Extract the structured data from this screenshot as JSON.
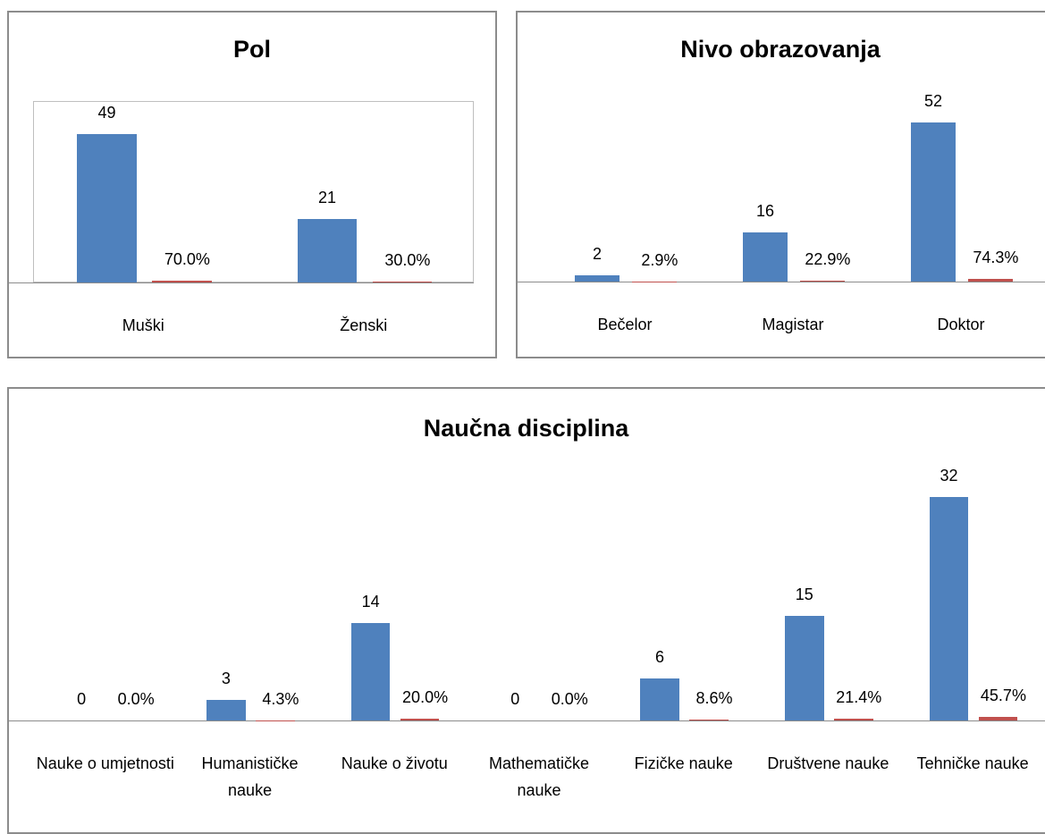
{
  "chart_data": [
    {
      "type": "bar",
      "title": "Pol",
      "categories": [
        "Muški",
        "Ženski"
      ],
      "series": [
        {
          "color": "#4f81bd",
          "values": [
            49,
            21
          ]
        },
        {
          "color": "#c0504d",
          "values": [
            0.7,
            0.3
          ],
          "value_labels": [
            "70.0%",
            "30.0%"
          ]
        }
      ],
      "ylim": [
        0,
        60
      ]
    },
    {
      "type": "bar",
      "title": "Nivo obrazovanja",
      "categories": [
        "Bečelor",
        "Magistar",
        "Doktor"
      ],
      "series": [
        {
          "color": "#4f81bd",
          "values": [
            2,
            16,
            52
          ]
        },
        {
          "color": "#c0504d",
          "values": [
            0.029,
            0.229,
            0.743
          ],
          "value_labels": [
            "2.9%",
            "22.9%",
            "74.3%"
          ]
        }
      ],
      "ylim": [
        0,
        60
      ]
    },
    {
      "type": "bar",
      "title": "Naučna disciplina",
      "categories": [
        "Nauke o umjetnosti",
        "Humanističke nauke",
        "Nauke o životu",
        "Mathematičke nauke",
        "Fizičke nauke",
        "Društvene nauke",
        "Tehničke nauke"
      ],
      "series": [
        {
          "color": "#4f81bd",
          "values": [
            0,
            3,
            14,
            0,
            6,
            15,
            32
          ]
        },
        {
          "color": "#c0504d",
          "values": [
            0,
            0.043,
            0.2,
            0,
            0.086,
            0.214,
            0.457
          ],
          "value_labels": [
            "0.0%",
            "4.3%",
            "20.0%",
            "0.0%",
            "8.6%",
            "21.4%",
            "45.7%"
          ]
        }
      ],
      "ylim": [
        0,
        35
      ]
    }
  ]
}
